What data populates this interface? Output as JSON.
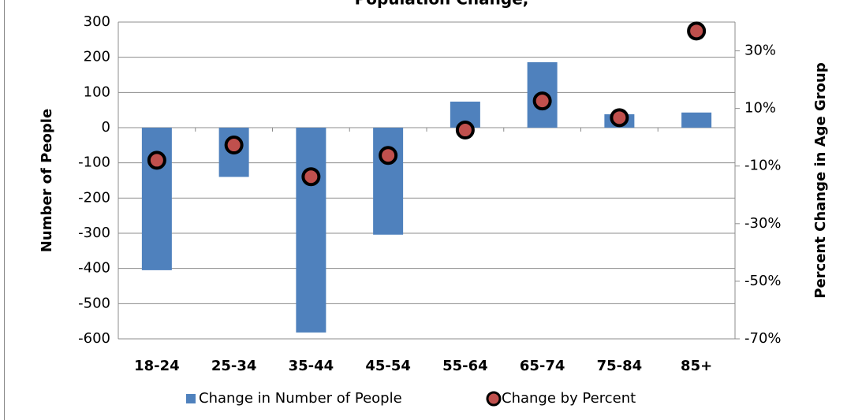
{
  "chart_data": {
    "type": "bar_scatter_combo",
    "title": "Population Change,",
    "categories": [
      "18-24",
      "25-34",
      "35-44",
      "45-54",
      "55-64",
      "65-74",
      "75-84",
      "85+"
    ],
    "y_label": "Number of People",
    "y2_label": "Percent Change in Age Group",
    "series": [
      {
        "name": "Change in Number of People",
        "color": "#4f81bd",
        "type": "bar",
        "values": [
          -405,
          -140,
          -582,
          -304,
          74,
          186,
          38,
          43
        ]
      },
      {
        "name": "Change by Percent",
        "color": "#c0504d",
        "type": "scatter",
        "axis": "y2",
        "values": [
          -8,
          -2.7,
          -13.7,
          -6.3,
          2.5,
          12.6,
          6.8,
          36.9
        ]
      }
    ],
    "ylim": [
      -600,
      300
    ],
    "yticks": [
      -600,
      -500,
      -400,
      -300,
      -200,
      -100,
      0,
      100,
      200,
      300
    ],
    "y2lim": [
      -70,
      40
    ],
    "y2ticks": [
      {
        "value": -70,
        "label": "-70%"
      },
      {
        "value": -50,
        "label": "-50%"
      },
      {
        "value": -30,
        "label": "-30%"
      },
      {
        "value": -10,
        "label": "-10%"
      },
      {
        "value": 10,
        "label": "10%"
      },
      {
        "value": 30,
        "label": "30%"
      }
    ],
    "grid": true
  }
}
